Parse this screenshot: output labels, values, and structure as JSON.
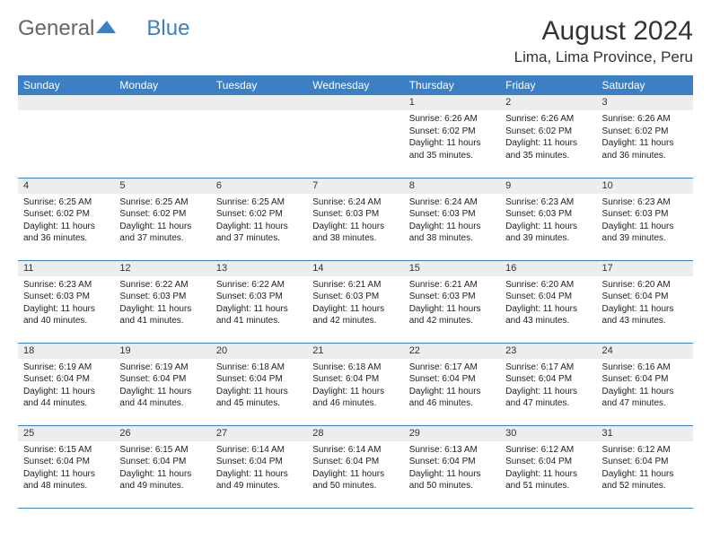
{
  "logo": {
    "text1": "General",
    "text2": "Blue"
  },
  "title": "August 2024",
  "location": "Lima, Lima Province, Peru",
  "colors": {
    "header_bg": "#3b7fc4",
    "header_text": "#ffffff",
    "daybar_bg": "#eceded",
    "border": "#3b7fc4",
    "text": "#222222",
    "logo_gray": "#666666",
    "logo_blue": "#3b7fc4"
  },
  "day_names": [
    "Sunday",
    "Monday",
    "Tuesday",
    "Wednesday",
    "Thursday",
    "Friday",
    "Saturday"
  ],
  "weeks": [
    [
      null,
      null,
      null,
      null,
      {
        "n": "1",
        "sr": "6:26 AM",
        "ss": "6:02 PM",
        "dl": "11 hours and 35 minutes."
      },
      {
        "n": "2",
        "sr": "6:26 AM",
        "ss": "6:02 PM",
        "dl": "11 hours and 35 minutes."
      },
      {
        "n": "3",
        "sr": "6:26 AM",
        "ss": "6:02 PM",
        "dl": "11 hours and 36 minutes."
      }
    ],
    [
      {
        "n": "4",
        "sr": "6:25 AM",
        "ss": "6:02 PM",
        "dl": "11 hours and 36 minutes."
      },
      {
        "n": "5",
        "sr": "6:25 AM",
        "ss": "6:02 PM",
        "dl": "11 hours and 37 minutes."
      },
      {
        "n": "6",
        "sr": "6:25 AM",
        "ss": "6:02 PM",
        "dl": "11 hours and 37 minutes."
      },
      {
        "n": "7",
        "sr": "6:24 AM",
        "ss": "6:03 PM",
        "dl": "11 hours and 38 minutes."
      },
      {
        "n": "8",
        "sr": "6:24 AM",
        "ss": "6:03 PM",
        "dl": "11 hours and 38 minutes."
      },
      {
        "n": "9",
        "sr": "6:23 AM",
        "ss": "6:03 PM",
        "dl": "11 hours and 39 minutes."
      },
      {
        "n": "10",
        "sr": "6:23 AM",
        "ss": "6:03 PM",
        "dl": "11 hours and 39 minutes."
      }
    ],
    [
      {
        "n": "11",
        "sr": "6:23 AM",
        "ss": "6:03 PM",
        "dl": "11 hours and 40 minutes."
      },
      {
        "n": "12",
        "sr": "6:22 AM",
        "ss": "6:03 PM",
        "dl": "11 hours and 41 minutes."
      },
      {
        "n": "13",
        "sr": "6:22 AM",
        "ss": "6:03 PM",
        "dl": "11 hours and 41 minutes."
      },
      {
        "n": "14",
        "sr": "6:21 AM",
        "ss": "6:03 PM",
        "dl": "11 hours and 42 minutes."
      },
      {
        "n": "15",
        "sr": "6:21 AM",
        "ss": "6:03 PM",
        "dl": "11 hours and 42 minutes."
      },
      {
        "n": "16",
        "sr": "6:20 AM",
        "ss": "6:04 PM",
        "dl": "11 hours and 43 minutes."
      },
      {
        "n": "17",
        "sr": "6:20 AM",
        "ss": "6:04 PM",
        "dl": "11 hours and 43 minutes."
      }
    ],
    [
      {
        "n": "18",
        "sr": "6:19 AM",
        "ss": "6:04 PM",
        "dl": "11 hours and 44 minutes."
      },
      {
        "n": "19",
        "sr": "6:19 AM",
        "ss": "6:04 PM",
        "dl": "11 hours and 44 minutes."
      },
      {
        "n": "20",
        "sr": "6:18 AM",
        "ss": "6:04 PM",
        "dl": "11 hours and 45 minutes."
      },
      {
        "n": "21",
        "sr": "6:18 AM",
        "ss": "6:04 PM",
        "dl": "11 hours and 46 minutes."
      },
      {
        "n": "22",
        "sr": "6:17 AM",
        "ss": "6:04 PM",
        "dl": "11 hours and 46 minutes."
      },
      {
        "n": "23",
        "sr": "6:17 AM",
        "ss": "6:04 PM",
        "dl": "11 hours and 47 minutes."
      },
      {
        "n": "24",
        "sr": "6:16 AM",
        "ss": "6:04 PM",
        "dl": "11 hours and 47 minutes."
      }
    ],
    [
      {
        "n": "25",
        "sr": "6:15 AM",
        "ss": "6:04 PM",
        "dl": "11 hours and 48 minutes."
      },
      {
        "n": "26",
        "sr": "6:15 AM",
        "ss": "6:04 PM",
        "dl": "11 hours and 49 minutes."
      },
      {
        "n": "27",
        "sr": "6:14 AM",
        "ss": "6:04 PM",
        "dl": "11 hours and 49 minutes."
      },
      {
        "n": "28",
        "sr": "6:14 AM",
        "ss": "6:04 PM",
        "dl": "11 hours and 50 minutes."
      },
      {
        "n": "29",
        "sr": "6:13 AM",
        "ss": "6:04 PM",
        "dl": "11 hours and 50 minutes."
      },
      {
        "n": "30",
        "sr": "6:12 AM",
        "ss": "6:04 PM",
        "dl": "11 hours and 51 minutes."
      },
      {
        "n": "31",
        "sr": "6:12 AM",
        "ss": "6:04 PM",
        "dl": "11 hours and 52 minutes."
      }
    ]
  ],
  "labels": {
    "sunrise": "Sunrise:",
    "sunset": "Sunset:",
    "daylight": "Daylight:"
  }
}
